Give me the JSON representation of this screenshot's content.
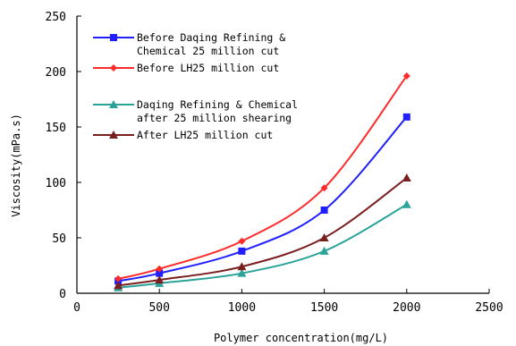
{
  "chart_data": {
    "type": "line",
    "xlabel": "Polymer concentration(mg/L)",
    "ylabel": "Viscosity(mPa.s)",
    "xlim": [
      0,
      2500
    ],
    "ylim": [
      0,
      250
    ],
    "xticks": [
      0,
      500,
      1000,
      1500,
      2000,
      2500
    ],
    "yticks": [
      0,
      50,
      100,
      150,
      200,
      250
    ],
    "grid": false,
    "legend_position": "top-left",
    "series": [
      {
        "name": "Before Daqing Refining & Chemical 25 million cut",
        "legend_lines": [
          "Before Daqing Refining &",
          "Chemical 25 million cut"
        ],
        "color": "#1f1fff",
        "marker": "square",
        "x": [
          250,
          500,
          1000,
          1500,
          2000
        ],
        "y": [
          11,
          18,
          38,
          75,
          159
        ]
      },
      {
        "name": "Before LH25 million cut",
        "legend_lines": [
          "Before LH25 million cut"
        ],
        "color": "#ff2a2a",
        "marker": "diamond",
        "x": [
          250,
          500,
          1000,
          1500,
          2000
        ],
        "y": [
          13,
          22,
          47,
          95,
          196
        ]
      },
      {
        "name": "Daqing Refining & Chemical after 25 million shearing",
        "legend_lines": [
          "Daqing Refining & Chemical",
          "after 25 million shearing"
        ],
        "color": "#2aa39a",
        "marker": "triangle",
        "x": [
          250,
          500,
          1000,
          1500,
          2000
        ],
        "y": [
          5,
          9,
          18,
          38,
          80
        ]
      },
      {
        "name": "After LH25 million cut",
        "legend_lines": [
          "After LH25 million cut"
        ],
        "color": "#7a1f1f",
        "marker": "triangle",
        "x": [
          250,
          500,
          1000,
          1500,
          2000
        ],
        "y": [
          7,
          12,
          24,
          50,
          104
        ]
      }
    ]
  }
}
